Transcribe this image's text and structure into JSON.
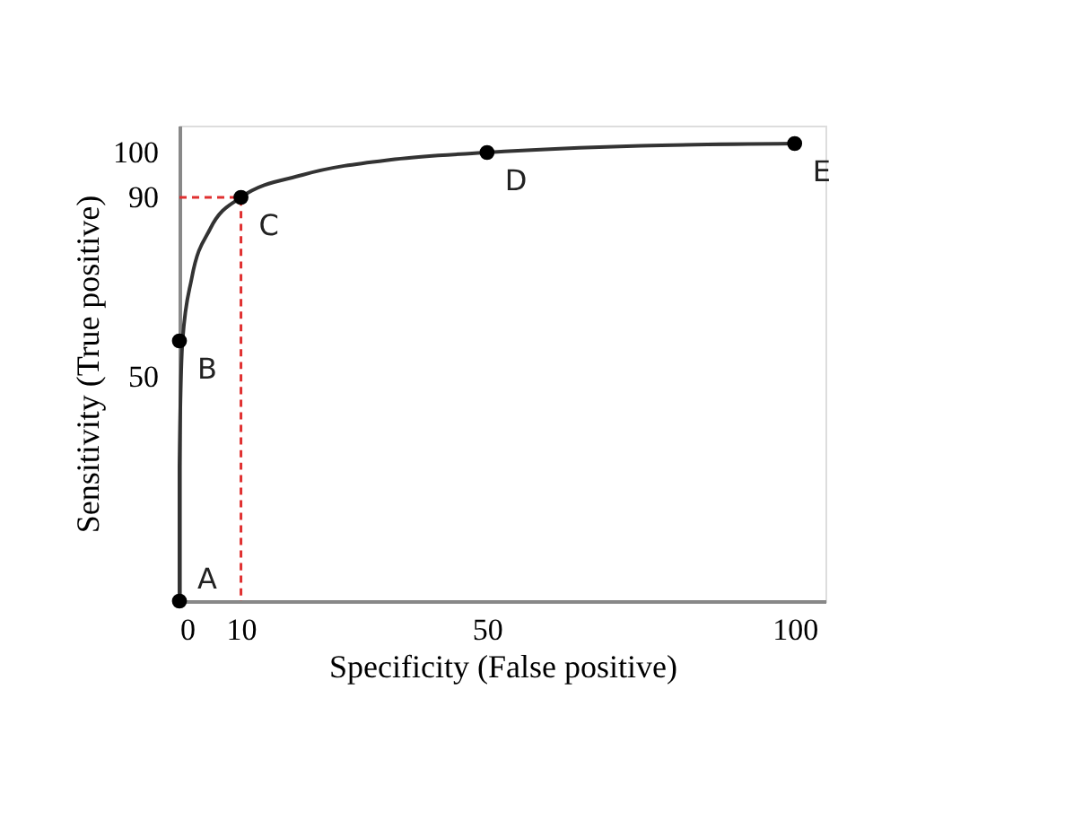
{
  "chart_data": {
    "type": "line",
    "xlabel": "Specificity (False positive)",
    "ylabel": "Sensitivity (True positive)",
    "xlim": [
      0,
      105
    ],
    "xticks": [
      0,
      10,
      50,
      100
    ],
    "ylim": [
      0,
      106
    ],
    "yticks": [
      50,
      90,
      100
    ],
    "grid": false,
    "series": [
      {
        "color": "#333333",
        "line_style": "solid",
        "marker": "none",
        "x": [
          0,
          0,
          0.5,
          2,
          5,
          10,
          20,
          35,
          50,
          75,
          100
        ],
        "values": [
          0,
          30,
          58,
          72,
          83,
          90,
          95,
          98.5,
          100,
          101.5,
          102
        ]
      },
      {
        "type": "line",
        "color": "#e03030",
        "line_style": "dashed",
        "marker": "none",
        "x": [
          0,
          10,
          10
        ],
        "values": [
          90,
          90,
          0
        ]
      },
      {
        "type": "scatter",
        "color": "#000000",
        "marker": "circle",
        "x": [
          0,
          0,
          10,
          50,
          100
        ],
        "values": [
          0,
          58,
          90,
          100,
          102
        ]
      }
    ],
    "annotations": [
      {
        "text": "A",
        "x": 0,
        "y": 0
      },
      {
        "text": "B",
        "x": 0,
        "y": 58
      },
      {
        "text": "C",
        "x": 10,
        "y": 90
      },
      {
        "text": "D",
        "x": 50,
        "y": 100
      },
      {
        "text": "E",
        "x": 100,
        "y": 102
      }
    ]
  }
}
